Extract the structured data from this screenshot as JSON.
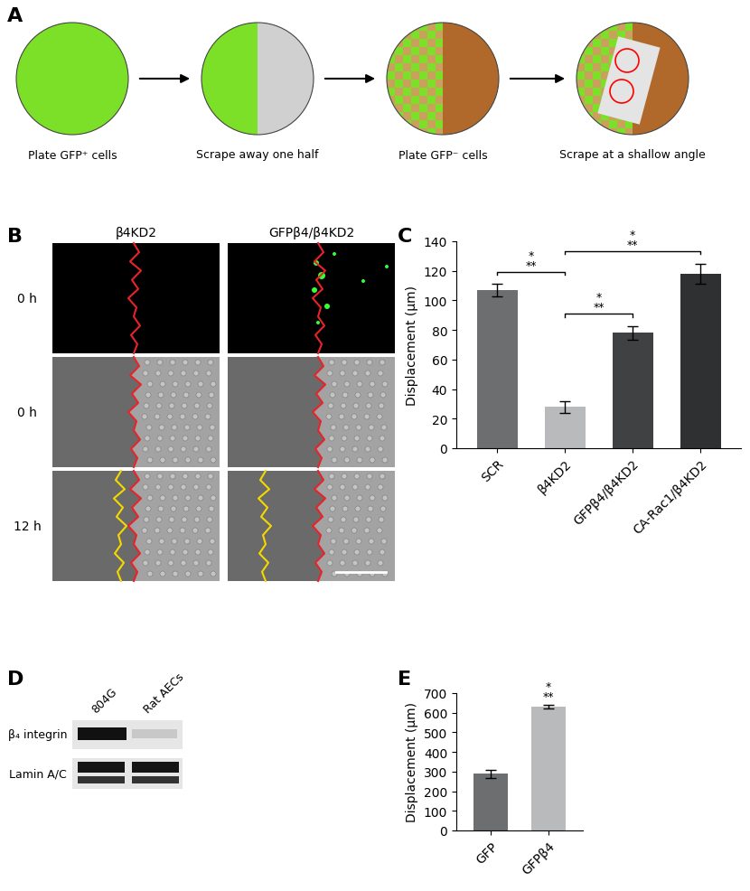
{
  "figure": {
    "panel_labels": [
      "A",
      "B",
      "C",
      "D",
      "E"
    ],
    "A": {
      "steps": [
        "Plate GFP⁺ cells",
        "Scrape away one half",
        "Plate GFP⁻ cells",
        "Scrape at a shallow angle"
      ]
    },
    "B": {
      "columns": [
        "β4KD2",
        "GFPβ4/β4KD2"
      ],
      "rows": [
        "0 h",
        "0 h",
        "12 h"
      ]
    },
    "D": {
      "lanes": [
        "804G",
        "Rat AECs"
      ],
      "bands": [
        "β₄ integrin",
        "Lamin A/C"
      ]
    }
  },
  "chart_data": [
    {
      "type": "bar",
      "categories": [
        "SCR",
        "β4KD2",
        "GFPβ4/β4KD2",
        "CA-Rac1/β4KD2"
      ],
      "values": [
        107,
        28,
        78,
        118
      ],
      "errors": [
        4,
        4,
        4.5,
        7
      ],
      "colors": [
        "#6d6e70",
        "#b8babb",
        "#404143",
        "#2f3032"
      ],
      "y_label": "Displacement (μm)",
      "ylim": [
        0,
        140
      ],
      "yticks": [
        0,
        20,
        40,
        60,
        80,
        100,
        120,
        140
      ],
      "significance": [
        {
          "from": "SCR",
          "to": "β4KD2",
          "label": "*\n**"
        },
        {
          "from": "β4KD2",
          "to": "GFPβ4/β4KD2",
          "label": "*\n**"
        },
        {
          "from": "β4KD2",
          "to": "CA-Rac1/β4KD2",
          "label": "*\n**"
        }
      ]
    },
    {
      "type": "bar",
      "categories": [
        "GFP",
        "GFPβ4"
      ],
      "values": [
        288,
        632
      ],
      "errors": [
        20,
        10
      ],
      "colors": [
        "#6d6e70",
        "#b8babb"
      ],
      "y_label": "Displacement (μm)",
      "ylim": [
        0,
        700
      ],
      "yticks": [
        0,
        100,
        200,
        300,
        400,
        500,
        600,
        700
      ],
      "significance": [
        {
          "over": "GFPβ4",
          "label": "*\n**"
        }
      ]
    }
  ]
}
